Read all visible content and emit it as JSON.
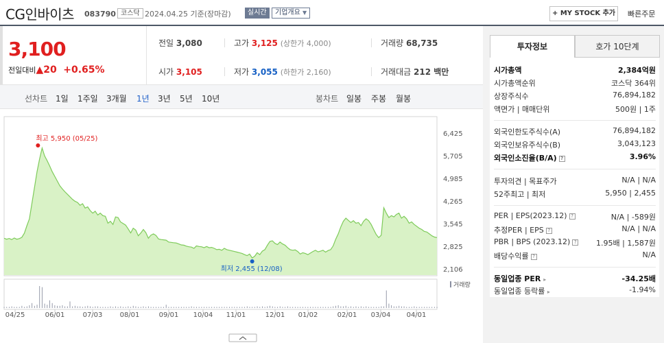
{
  "header": {
    "name": "CG인바이츠",
    "code": "083790",
    "market": "코스닥",
    "date": "2024.04.25",
    "basis": "기준(장마감)",
    "realtime": "실시간",
    "overview": "기업개요",
    "mystock": "+ MY STOCK 추가",
    "quick_order": "빠른주문"
  },
  "price": {
    "current": "3,100",
    "change_label": "전일대비",
    "arrow": "▲",
    "change": "20",
    "change_pct": "+0.65%"
  },
  "stats": {
    "prev_label": "전일",
    "prev": "3,080",
    "high_label": "고가",
    "high": "3,125",
    "upper_limit": "(상한가 4,000)",
    "volume_label": "거래량",
    "volume": "68,735",
    "open_label": "시가",
    "open": "3,105",
    "low_label": "저가",
    "low": "3,055",
    "lower_limit": "(하한가 2,160)",
    "value_label": "거래대금",
    "value": "212 백만"
  },
  "toolbar": {
    "line_label": "선차트",
    "periods": [
      "1일",
      "1주일",
      "3개월",
      "1년",
      "3년",
      "5년",
      "10년"
    ],
    "active_period": "1년",
    "candle_label": "봉차트",
    "candle": [
      "일봉",
      "주봉",
      "월봉"
    ]
  },
  "chart_data": {
    "type": "area",
    "y_ticks": [
      "6,425",
      "5,705",
      "4,985",
      "4,265",
      "3,545",
      "2,825",
      "2,106"
    ],
    "y_values": [
      6425,
      5705,
      4985,
      4265,
      3545,
      2825,
      2106
    ],
    "x_labels": [
      "04/25",
      "06/01",
      "07/03",
      "08/01",
      "09/01",
      "10/04",
      "11/01",
      "12/01",
      "01/02",
      "02/01",
      "03/04",
      "04/01"
    ],
    "high_label": "최고 5,950 (05/25)",
    "low_label": "최저 2,455 (12/08)",
    "volume_label": "거래량",
    "fill_color": "#d9f2c6",
    "line_color": "#7ecb5a",
    "high_color": "#e01f1f",
    "low_color": "#1660c4",
    "series": [
      {
        "values": [
          3080,
          3050,
          3075,
          3040,
          3090,
          3050,
          3070,
          3110,
          3240,
          3480,
          3700,
          4200,
          4700,
          5200,
          5600,
          5950,
          5700,
          5550,
          5380,
          5200,
          5050,
          4900,
          4750,
          4650,
          4560,
          4480,
          4400,
          4320,
          4260,
          4220,
          4130,
          4180,
          4040,
          4080,
          3960,
          3880,
          3940,
          3820,
          3880,
          3800,
          3780,
          3560,
          3620,
          3520,
          3760,
          3740,
          3600,
          3550,
          3500,
          3380,
          3250,
          3400,
          3340,
          3160,
          3250,
          3360,
          3260,
          3080,
          3180,
          3220,
          3170,
          3060,
          3040,
          3030,
          3020,
          2960,
          2950,
          2940,
          2930,
          2900,
          2870,
          2860,
          2830,
          2810,
          2800,
          2760,
          2840,
          2820,
          2810,
          2780,
          2820,
          2780,
          2790,
          2760,
          2720,
          2730,
          2700,
          2760,
          2720,
          2700,
          2680,
          2660,
          2640,
          2620,
          2600,
          2560,
          2530,
          2580,
          2455,
          2510,
          2620,
          2560,
          2670,
          2720,
          2860,
          2980,
          3000,
          2920,
          2880,
          2960,
          2900,
          2860,
          2780,
          2720,
          2700,
          2710,
          2660,
          2580,
          2620,
          2600,
          2560,
          2610,
          2660,
          2700,
          2650,
          2670,
          2700,
          2640,
          2690,
          2720,
          2840,
          3050,
          3220,
          3440,
          3620,
          3720,
          3650,
          3580,
          3640,
          3560,
          3580,
          3480,
          3620,
          3700,
          3640,
          3520,
          3360,
          3200,
          3100,
          3180,
          4050,
          3880,
          3740,
          3800,
          3760,
          3840,
          3880,
          3720,
          3780,
          3700,
          3560,
          3600,
          3520,
          3460,
          3400,
          3360,
          3300,
          3280,
          3220,
          3160,
          3120,
          3100
        ]
      },
      {
        "name": "거래량",
        "values": [
          2,
          2,
          2,
          3,
          2,
          2,
          2,
          4,
          2,
          3,
          5,
          9,
          4,
          6,
          40,
          38,
          8,
          6,
          14,
          9,
          5,
          4,
          4,
          5,
          3,
          3,
          12,
          3,
          4,
          3,
          3,
          2,
          3,
          4,
          3,
          2,
          3,
          3,
          2,
          2,
          2,
          2,
          3,
          2,
          3,
          2,
          3,
          2,
          2,
          3,
          2,
          4,
          3,
          2,
          2,
          3,
          2,
          3,
          2,
          2,
          2,
          2,
          2,
          2,
          6,
          2,
          2,
          2,
          2,
          2,
          2,
          2,
          2,
          2,
          3,
          2,
          2,
          2,
          2,
          2,
          2,
          2,
          2,
          2,
          2,
          2,
          2,
          2,
          2,
          2,
          2,
          2,
          2,
          2,
          2,
          2,
          3,
          2,
          2,
          2,
          3,
          2,
          3,
          2,
          3,
          4,
          3,
          2,
          2,
          3,
          2,
          2,
          3,
          2,
          2,
          2,
          2,
          2,
          2,
          2,
          2,
          2,
          2,
          2,
          2,
          2,
          2,
          2,
          2,
          2,
          3,
          4,
          5,
          3,
          3,
          4,
          2,
          3,
          2,
          3,
          2,
          3,
          2,
          3,
          2,
          2,
          2,
          2,
          2,
          3,
          3,
          32,
          8,
          5,
          3,
          3,
          4,
          3,
          3,
          2,
          2,
          2,
          3,
          2,
          2,
          2,
          2,
          2,
          2,
          2,
          2,
          2
        ]
      }
    ]
  },
  "panel": {
    "tab_active": "투자정보",
    "tab_other": "호가 10단계",
    "market_cap_label": "시가총액",
    "market_cap": "2,384억원",
    "market_cap_rank_label": "시가총액순위",
    "market_cap_rank": "코스닥 364위",
    "shares_label": "상장주식수",
    "shares": "76,894,182",
    "par_label": "액면가 | 매매단위",
    "par": "500원",
    "unit": "1주",
    "foreign_limit_label": "외국인한도주식수(A)",
    "foreign_limit": "76,894,182",
    "foreign_hold_label": "외국인보유주식수(B)",
    "foreign_hold": "3,043,123",
    "foreign_ratio_label": "외국인소진율(B/A)",
    "foreign_ratio": "3.96%",
    "opinion_label": "투자의견 | 목표주가",
    "opinion": "N/A",
    "target": "N/A",
    "w52_label": "52주최고 | 최저",
    "w52_high": "5,950",
    "w52_low": "2,455",
    "per_label": "PER | EPS(2023.12)",
    "per": "N/A",
    "eps": "-589원",
    "est_per_label": "추정PER | EPS",
    "est_per": "N/A",
    "est_eps": "N/A",
    "pbr_label": "PBR | BPS (2023.12)",
    "pbr": "1.95배",
    "bps": "1,587원",
    "div_label": "배당수익률",
    "div": "N/A",
    "sector_per_label": "동일업종 PER",
    "sector_per": "-34.25배",
    "sector_chg_label": "동일업종 등락률",
    "sector_chg": "-1.94%"
  }
}
